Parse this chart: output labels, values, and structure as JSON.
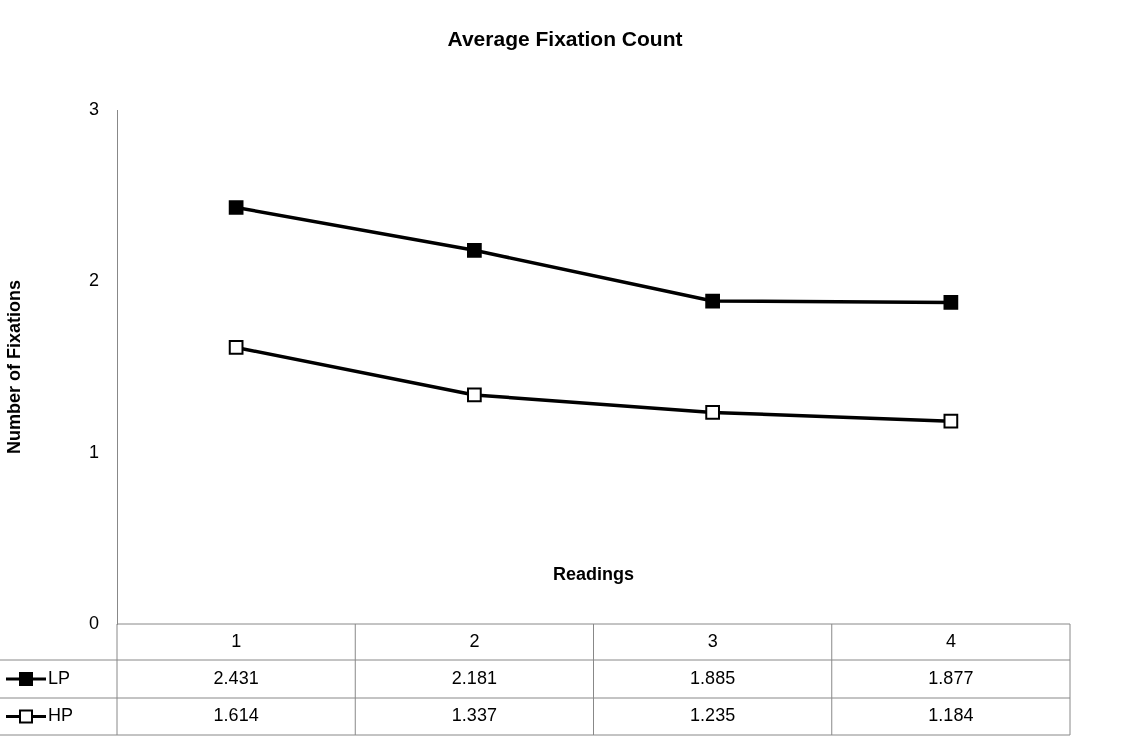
{
  "chart_data": {
    "type": "line",
    "title": "Average Fixation Count",
    "xlabel": "Readings",
    "ylabel": "Number of Fixations",
    "categories": [
      "1",
      "2",
      "3",
      "4"
    ],
    "series": [
      {
        "name": "LP",
        "color": "#000000",
        "values": [
          2.431,
          2.181,
          1.885,
          1.877
        ]
      },
      {
        "name": "HP",
        "color": "#000000",
        "values": [
          1.614,
          1.337,
          1.235,
          1.184
        ]
      }
    ],
    "ylim": [
      0,
      3
    ],
    "yticks": [
      0,
      1,
      2,
      3
    ],
    "grid": false,
    "legend": "bottom",
    "marker": "square",
    "line_style": "solid",
    "data_labels": true
  }
}
